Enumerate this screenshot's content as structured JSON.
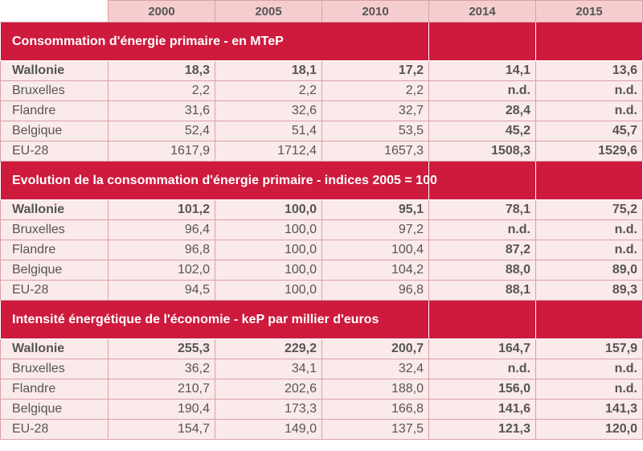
{
  "years": [
    "2000",
    "2005",
    "2010",
    "2014",
    "2015"
  ],
  "sections": [
    {
      "title": "Consommation d'énergie primaire - en MTeP",
      "rows": [
        {
          "label": "Wallonie",
          "values": [
            "18,3",
            "18,1",
            "17,2",
            "14,1",
            "13,6"
          ]
        },
        {
          "label": "Bruxelles",
          "values": [
            "2,2",
            "2,2",
            "2,2",
            "n.d.",
            "n.d."
          ]
        },
        {
          "label": "Flandre",
          "values": [
            "31,6",
            "32,6",
            "32,7",
            "28,4",
            "n.d."
          ]
        },
        {
          "label": "Belgique",
          "values": [
            "52,4",
            "51,4",
            "53,5",
            "45,2",
            "45,7"
          ]
        },
        {
          "label": "EU-28",
          "values": [
            "1617,9",
            "1712,4",
            "1657,3",
            "1508,3",
            "1529,6"
          ]
        }
      ]
    },
    {
      "title": "Evolution de la consommation d'énergie primaire - indices 2005 = 100",
      "rows": [
        {
          "label": "Wallonie",
          "values": [
            "101,2",
            "100,0",
            "95,1",
            "78,1",
            "75,2"
          ]
        },
        {
          "label": "Bruxelles",
          "values": [
            "96,4",
            "100,0",
            "97,2",
            "n.d.",
            "n.d."
          ]
        },
        {
          "label": "Flandre",
          "values": [
            "96,8",
            "100,0",
            "100,4",
            "87,2",
            "n.d."
          ]
        },
        {
          "label": "Belgique",
          "values": [
            "102,0",
            "100,0",
            "104,2",
            "88,0",
            "89,0"
          ]
        },
        {
          "label": "EU-28",
          "values": [
            "94,5",
            "100,0",
            "96,8",
            "88,1",
            "89,3"
          ]
        }
      ]
    },
    {
      "title": "Intensité énergétique de l'économie - keP par millier d'euros",
      "rows": [
        {
          "label": "Wallonie",
          "values": [
            "255,3",
            "229,2",
            "200,7",
            "164,7",
            "157,9"
          ]
        },
        {
          "label": "Bruxelles",
          "values": [
            "36,2",
            "34,1",
            "32,4",
            "n.d.",
            "n.d."
          ]
        },
        {
          "label": "Flandre",
          "values": [
            "210,7",
            "202,6",
            "188,0",
            "156,0",
            "n.d."
          ]
        },
        {
          "label": "Belgique",
          "values": [
            "190,4",
            "173,3",
            "166,8",
            "141,6",
            "141,3"
          ]
        },
        {
          "label": "EU-28",
          "values": [
            "154,7",
            "149,0",
            "137,5",
            "121,3",
            "120,0"
          ]
        }
      ]
    }
  ]
}
